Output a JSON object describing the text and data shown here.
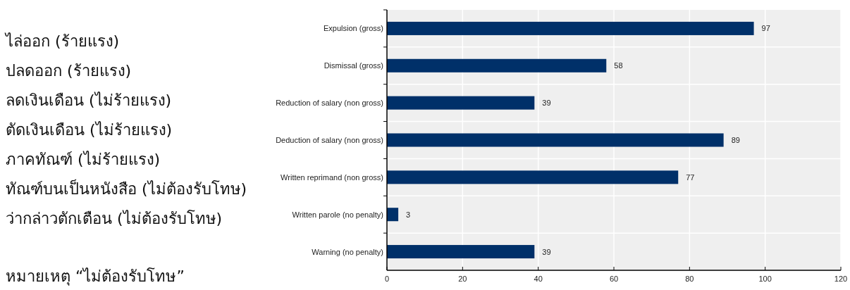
{
  "chart_data": {
    "type": "bar",
    "orientation": "horizontal",
    "categories": [
      "Expulsion (gross)",
      "Dismissal (gross)",
      "Reduction of salary (non gross)",
      "Deduction of salary (non gross)",
      "Written reprimand (non gross)",
      "Written parole (no penalty)",
      "Warning (no penalty)"
    ],
    "values": [
      97,
      58,
      39,
      89,
      77,
      3,
      39
    ],
    "color": "#003069",
    "xlim": [
      0,
      120
    ],
    "xticks": [
      0,
      20,
      40,
      60,
      80,
      100,
      120
    ],
    "grid": true,
    "data_labels": true,
    "annotations": [
      "ไล่ออก (ร้ายแรง)",
      "ปลดออก (ร้ายแรง)",
      "ลดเงินเดือน (ไม่ร้ายแรง)",
      "ตัดเงินเดือน (ไม่ร้ายแรง)",
      "ภาคทัณฑ์ (ไม่ร้ายแรง)",
      "ทัณฑ์บนเป็นหนังสือ (ไม่ต้องรับโทษ)",
      "ว่ากล่าวตักเตือน (ไม่ต้องรับโทษ)",
      "หมายเหตุ “ไม่ต้องรับโทษ”"
    ]
  }
}
